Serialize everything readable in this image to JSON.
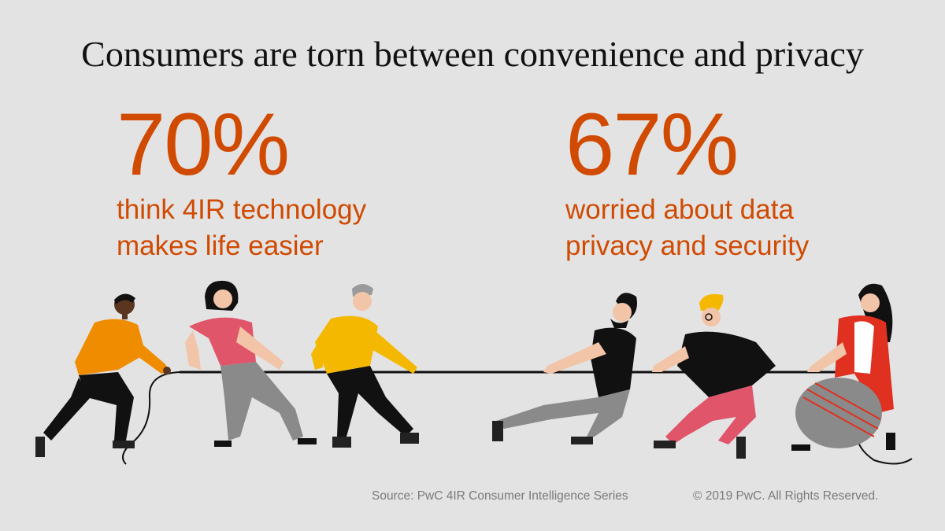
{
  "headline": "Consumers are torn between convenience and privacy",
  "stats": [
    {
      "value": "70%",
      "line1": "think 4IR technology",
      "line2": "makes life easier"
    },
    {
      "value": "67%",
      "line1": "worried about data",
      "line2": "privacy and security"
    }
  ],
  "footer": {
    "source": "Source: PwC 4IR Consumer Intelligence Series",
    "copyright": "© 2019 PwC. All Rights Reserved."
  },
  "colors": {
    "accent": "#d04a02",
    "background": "#e3e3e3"
  }
}
